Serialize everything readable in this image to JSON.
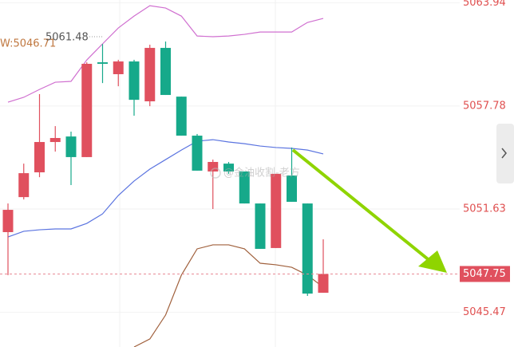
{
  "chart_data": {
    "type": "candlestick",
    "ylim": [
      5043.39,
      5064.11
    ],
    "yticks": [
      5063.94,
      5057.78,
      5051.63,
      5045.47
    ],
    "grid": true,
    "up_color": "#e0505e",
    "down_color": "#16a98a",
    "indicator_label": "W:5046.71",
    "high_label": 5061.48,
    "current_price": 5047.75,
    "watermark": "@金油收割-老方",
    "candles": {
      "open": [
        5050.25,
        5052.34,
        5053.82,
        5055.63,
        5055.96,
        5054.73,
        5060.39,
        5059.68,
        5060.44,
        5058.06,
        5061.25,
        5058.34,
        5056.01,
        5053.87,
        5054.34,
        5053.87,
        5051.96,
        5049.3,
        5053.63,
        5051.96,
        5046.63
      ],
      "high": [
        5051.96,
        5054.34,
        5058.49,
        5056.58,
        5056.25,
        5060.39,
        5061.48,
        5060.54,
        5060.54,
        5061.44,
        5061.63,
        5058.34,
        5056.11,
        5054.58,
        5054.44,
        5053.87,
        5051.96,
        5053.73,
        5055.3,
        5051.96,
        5049.82
      ],
      "low": [
        5047.68,
        5052.2,
        5053.53,
        5055.06,
        5053.06,
        5054.73,
        5059.15,
        5058.96,
        5057.2,
        5057.77,
        5058.44,
        5056.01,
        5053.92,
        5051.63,
        5053.73,
        5051.96,
        5049.25,
        5049.3,
        5052.06,
        5046.44,
        5046.63
      ],
      "close": [
        5051.58,
        5053.77,
        5055.63,
        5055.87,
        5054.73,
        5060.3,
        5060.3,
        5060.44,
        5058.15,
        5061.25,
        5058.44,
        5056.01,
        5053.92,
        5054.44,
        5053.87,
        5051.96,
        5049.25,
        5053.73,
        5052.06,
        5046.58,
        5047.75
      ]
    },
    "series": [
      {
        "color": "#d070d0",
        "values": [
          5058.01,
          5058.3,
          5058.77,
          5059.2,
          5059.25,
          5060.53,
          5061.49,
          5062.44,
          5063.15,
          5063.77,
          5063.63,
          5063.15,
          5061.96,
          5061.92,
          5061.96,
          5062.06,
          5062.2,
          5062.2,
          5062.2,
          5062.77,
          5063.01
        ]
      },
      {
        "color": "#5b74e0",
        "values": [
          5049.96,
          5050.3,
          5050.39,
          5050.44,
          5050.44,
          5050.77,
          5051.34,
          5052.44,
          5053.3,
          5054.01,
          5054.58,
          5055.15,
          5055.68,
          5055.77,
          5055.63,
          5055.53,
          5055.39,
          5055.3,
          5055.25,
          5055.15,
          5054.92
        ]
      },
      {
        "color": "#a0603c",
        "values": [
          null,
          null,
          null,
          null,
          null,
          null,
          null,
          null,
          5043.39,
          5043.87,
          5045.3,
          5047.68,
          5049.25,
          5049.49,
          5049.49,
          5049.25,
          5048.39,
          5048.3,
          5048.15,
          5047.68,
          5046.96
        ]
      }
    ]
  }
}
